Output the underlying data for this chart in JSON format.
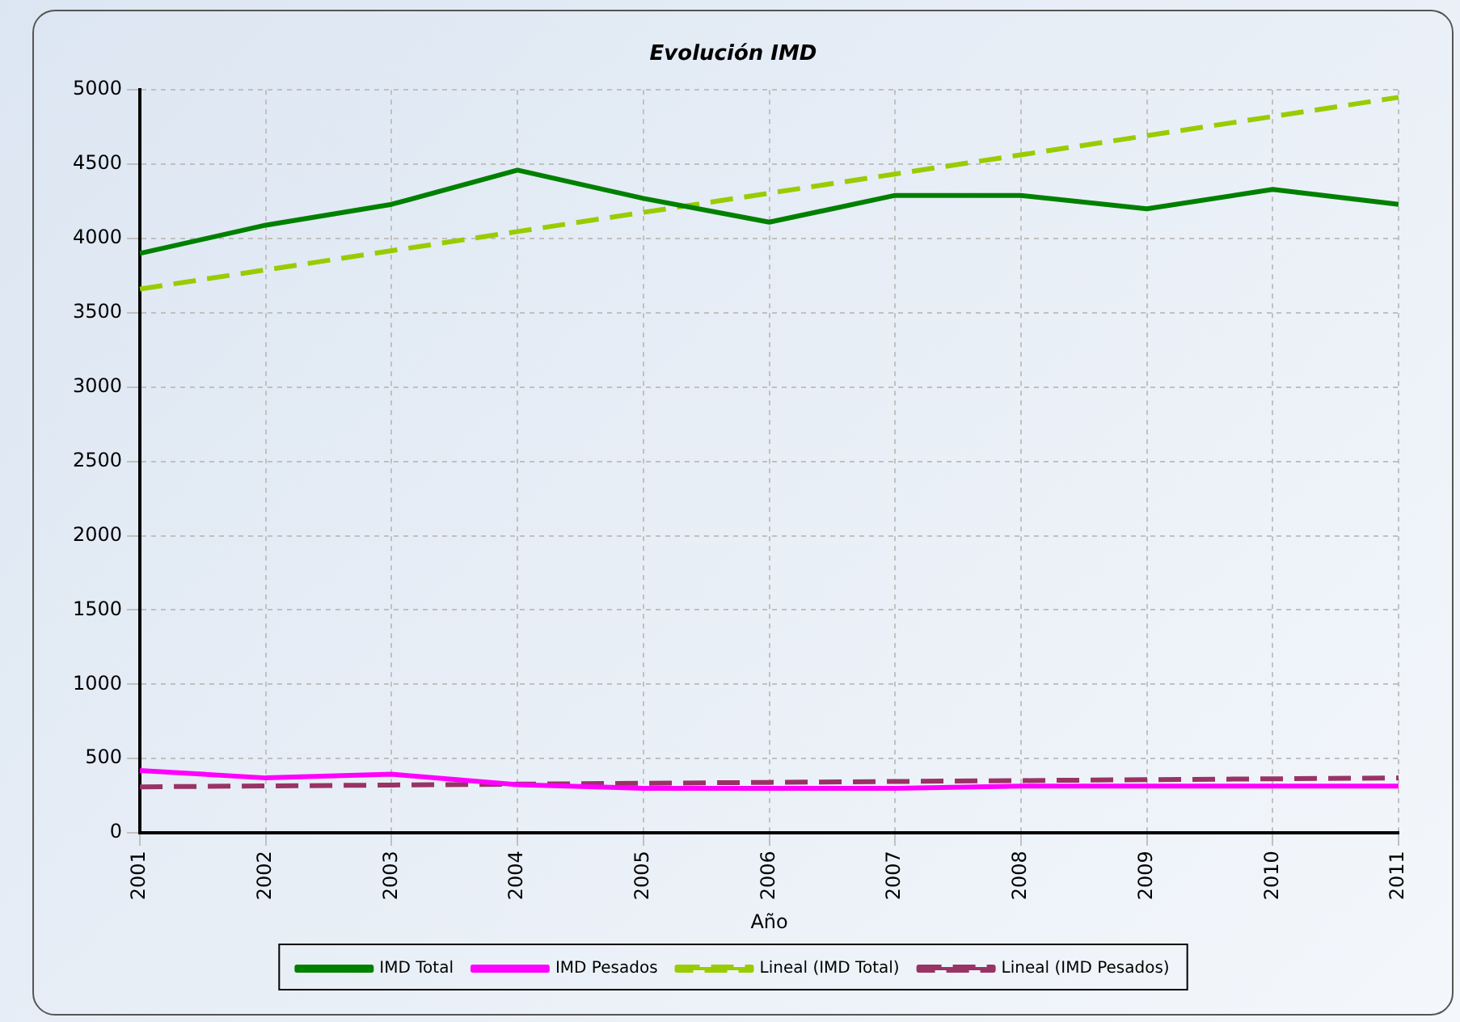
{
  "chart_data": {
    "type": "line",
    "title": "Evolución IMD",
    "xlabel": "Año",
    "categories": [
      "2001",
      "2002",
      "2003",
      "2004",
      "2005",
      "2006",
      "2007",
      "2008",
      "2009",
      "2010",
      "2011"
    ],
    "series": [
      {
        "name": "IMD Total",
        "color": "#008000",
        "line_style": "solid",
        "values": [
          3900,
          4090,
          4230,
          4460,
          4270,
          4110,
          4290,
          4290,
          4200,
          4330,
          4230
        ]
      },
      {
        "name": "IMD Pesados",
        "color": "#ff00ff",
        "line_style": "solid",
        "values": [
          420,
          370,
          395,
          325,
          300,
          300,
          300,
          315,
          315,
          315,
          315
        ]
      },
      {
        "name": "Lineal (IMD Total)",
        "color": "#99cc00",
        "line_style": "dashed",
        "values": [
          3660,
          3789,
          3918,
          4047,
          4176,
          4305,
          4434,
          4563,
          4692,
          4821,
          4950
        ]
      },
      {
        "name": "Lineal (IMD Pesados)",
        "color": "#993366",
        "line_style": "dashed",
        "values": [
          310,
          316,
          322,
          328,
          334,
          340,
          346,
          352,
          358,
          364,
          370
        ]
      }
    ],
    "ylim": [
      0,
      5000
    ],
    "yticks": [
      0,
      500,
      1000,
      1500,
      2000,
      2500,
      3000,
      3500,
      4000,
      4500,
      5000
    ],
    "grid": true,
    "legend": "bottom",
    "marker": "none"
  }
}
